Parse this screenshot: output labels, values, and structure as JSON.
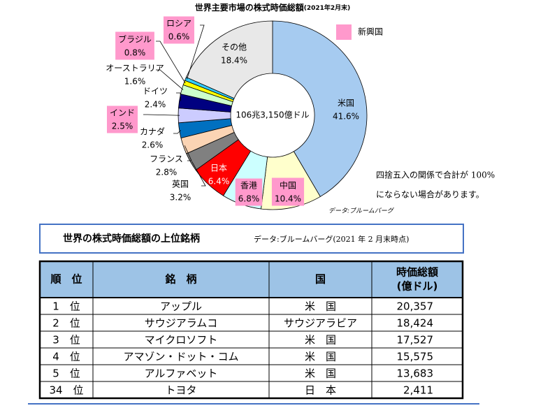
{
  "chart_data": {
    "type": "donut",
    "title": "世界主要市場の株式時価総額",
    "subtitle": "(2021年2月末)",
    "center_label": "106兆3,150億ドル",
    "categories": [
      "米国",
      "中国",
      "香港",
      "日本",
      "英国",
      "フランス",
      "カナダ",
      "インド",
      "ドイツ",
      "オーストラリア",
      "ブラジル",
      "ロシア",
      "その他"
    ],
    "values": [
      41.6,
      10.4,
      6.8,
      6.4,
      3.2,
      2.8,
      2.6,
      2.5,
      2.4,
      1.6,
      0.8,
      0.6,
      18.4
    ],
    "value_labels": [
      "41.6%",
      "10.4%",
      "6.8%",
      "6.4%",
      "3.2%",
      "2.8%",
      "2.6%",
      "2.5%",
      "2.4%",
      "1.6%",
      "0.8%",
      "0.6%",
      "18.4%"
    ],
    "colors": [
      "#a6cbf0",
      "#ffffcc",
      "#ccffff",
      "#ff0000",
      "#808080",
      "#fbd4b4",
      "#0070c0",
      "#ccccff",
      "#000080",
      "#ccffcc",
      "#ffff00",
      "#33ccff",
      "#e8e8e8"
    ],
    "highlighted": [
      false,
      true,
      true,
      false,
      false,
      false,
      false,
      true,
      false,
      false,
      true,
      true,
      false
    ],
    "legend": {
      "label": "新興国",
      "color": "#ff99cc"
    },
    "note": [
      "四捨五入の関係で合計が 100%",
      "にならない場合があります。"
    ],
    "source": "データ:ブルームバーグ"
  },
  "table_section": {
    "title": "世界の株式時価総額の上位銘柄",
    "source": "データ:ブルームバーグ(2021 年 2 月末時点)"
  },
  "table": {
    "header": [
      "順　位",
      "銘　柄",
      "国",
      [
        "時価総額",
        "(億ドル)"
      ]
    ],
    "rows": [
      [
        "1　位",
        "アップル",
        "米　国",
        "20,357"
      ],
      [
        "2　位",
        "サウジアラムコ",
        "サウジアラビア",
        "18,424"
      ],
      [
        "3　位",
        "マイクロソフト",
        "米　国",
        "17,527"
      ],
      [
        "4　位",
        "アマゾン・ドット・コム",
        "米　国",
        "15,575"
      ],
      [
        "5　位",
        "アルファベット",
        "米　国",
        "13,683"
      ],
      [
        "34　位",
        "トヨタ",
        "日　本",
        "2,411"
      ]
    ]
  }
}
